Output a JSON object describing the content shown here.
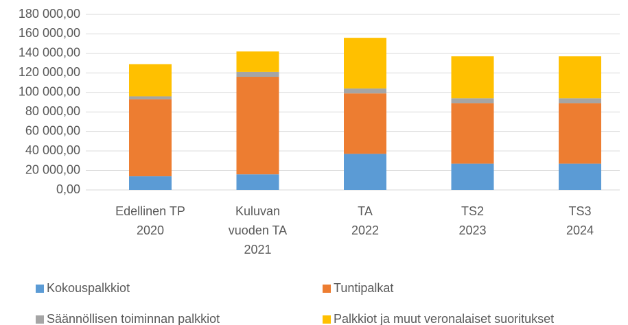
{
  "chart_data": {
    "type": "stacked_bar",
    "categories": [
      "Edellinen TP\n2020",
      "Kuluvan\nvuoden TA\n2021",
      "TA\n2022",
      "TS2\n2023",
      "TS3\n2024"
    ],
    "series": [
      {
        "name": "Kokouspalkkiot",
        "color": "#5b9bd5",
        "values": [
          14000,
          16000,
          37000,
          27000,
          27000
        ]
      },
      {
        "name": "Tuntipalkat",
        "color": "#ed7d31",
        "values": [
          79000,
          100000,
          62000,
          62000,
          62000
        ]
      },
      {
        "name": "Säännöllisen toiminnan palkkiot",
        "color": "#a5a5a5",
        "values": [
          3000,
          5000,
          5000,
          5000,
          5000
        ]
      },
      {
        "name": "Palkkiot ja muut veronalaiset suoritukset",
        "color": "#ffc000",
        "values": [
          33000,
          21000,
          52000,
          43000,
          43000
        ]
      }
    ],
    "ylim": [
      0,
      180000
    ],
    "yticks": [
      {
        "value": 0,
        "label": "0,00"
      },
      {
        "value": 20000,
        "label": "20 000,00"
      },
      {
        "value": 40000,
        "label": "40 000,00"
      },
      {
        "value": 60000,
        "label": "60 000,00"
      },
      {
        "value": 80000,
        "label": "80 000,00"
      },
      {
        "value": 100000,
        "label": "100 000,00"
      },
      {
        "value": 120000,
        "label": "120 000,00"
      },
      {
        "value": 140000,
        "label": "140 000,00"
      },
      {
        "value": 160000,
        "label": "160 000,00"
      },
      {
        "value": 180000,
        "label": "180 000,00"
      }
    ],
    "grid": true,
    "legend": "bottom"
  }
}
